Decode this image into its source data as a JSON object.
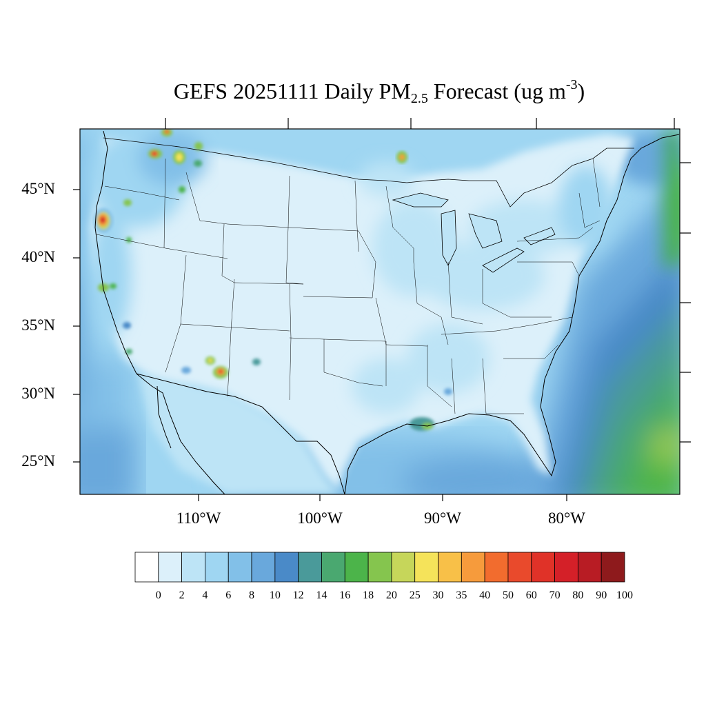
{
  "title": {
    "prefix": "GEFS 20251111 Daily PM",
    "subscript": "2.5",
    "suffix": " Forecast (ug m",
    "superscript": "-3",
    "close": ")"
  },
  "map": {
    "projection": "lambert-conformal",
    "region": "Contiguous United States",
    "lat_labels": [
      "45°N",
      "40°N",
      "35°N",
      "30°N",
      "25°N"
    ],
    "lon_labels": [
      "110°W",
      "100°W",
      "90°W",
      "80°W"
    ],
    "hotspots": [
      {
        "location": "Oregon coast",
        "level": "70-90"
      },
      {
        "location": "Northern Washington",
        "level": "35-60"
      },
      {
        "location": "Idaho panhandle",
        "level": "25-40"
      },
      {
        "location": "Southern Arizona",
        "level": "30-60"
      },
      {
        "location": "Northern Minnesota",
        "level": "25-40"
      },
      {
        "location": "Southern Louisiana",
        "level": "16-25"
      },
      {
        "location": "Caribbean / Bahamas",
        "level": "16-25"
      }
    ]
  },
  "colorbar": {
    "labels": [
      "0",
      "2",
      "4",
      "6",
      "8",
      "10",
      "12",
      "14",
      "16",
      "18",
      "20",
      "25",
      "30",
      "35",
      "40",
      "50",
      "60",
      "70",
      "80",
      "90",
      "100"
    ],
    "colors": [
      "#ffffff",
      "#dcf0fa",
      "#bde4f6",
      "#9fd6f2",
      "#82c0e8",
      "#69a8dc",
      "#4a8ac8",
      "#4a9a9a",
      "#4aa870",
      "#4cb44a",
      "#85c54e",
      "#c6d65a",
      "#f5e35a",
      "#f8c048",
      "#f69b3c",
      "#f26c2e",
      "#e94a2c",
      "#e03228",
      "#d42028",
      "#b81c24",
      "#8e1a1c"
    ]
  }
}
